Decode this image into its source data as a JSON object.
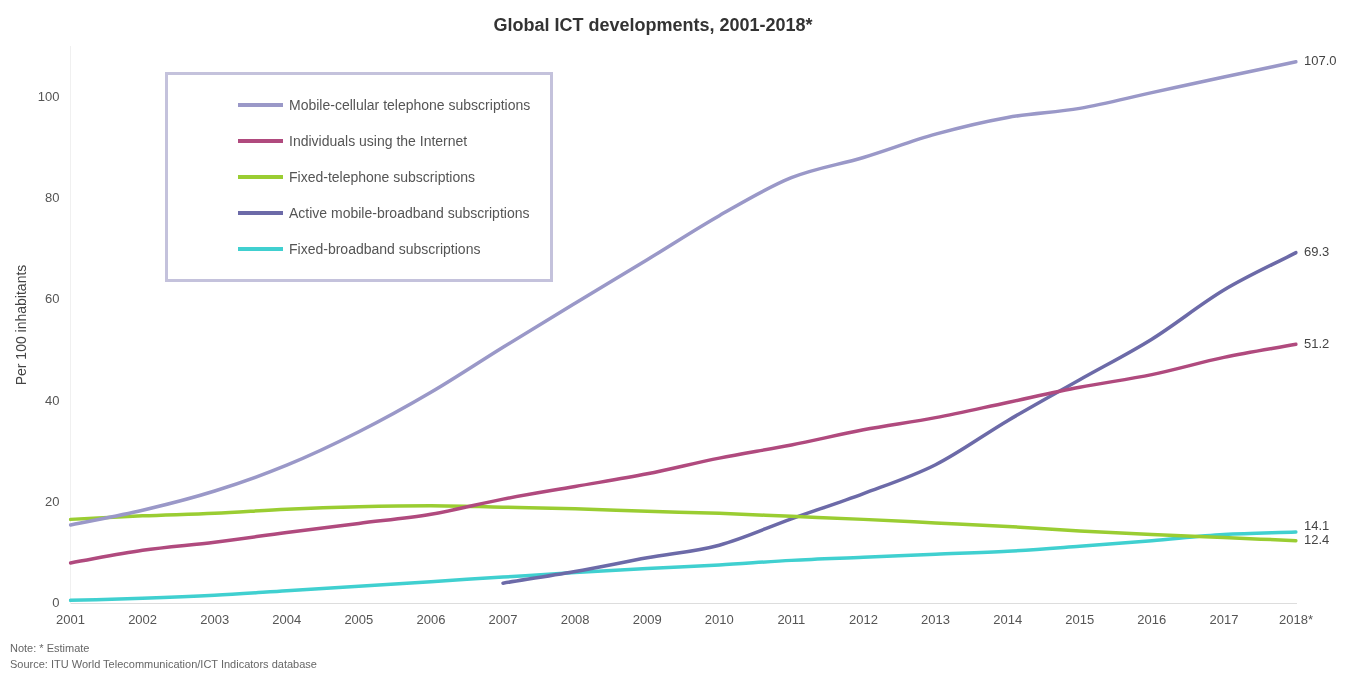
{
  "chart_data": {
    "type": "line",
    "title": "Global ICT developments, 2001-2018*",
    "ylabel": "Per 100 inhabitants",
    "categories": [
      "2001",
      "2002",
      "2003",
      "2004",
      "2005",
      "2006",
      "2007",
      "2008",
      "2009",
      "2010",
      "2011",
      "2012",
      "2013",
      "2014",
      "2015",
      "2016",
      "2017",
      "2018*"
    ],
    "ylim": [
      0,
      110
    ],
    "yticks": [
      0,
      20,
      40,
      60,
      80,
      100
    ],
    "grid": false,
    "legend": "top left",
    "marker": "none",
    "line_style": "solid",
    "series": [
      {
        "name": "Mobile-cellular telephone subscriptions",
        "color": "#9a98c8",
        "values": [
          15.5,
          18.4,
          22.2,
          27.3,
          33.9,
          41.7,
          50.6,
          59.3,
          67.9,
          76.6,
          84.1,
          88.1,
          92.7,
          96.0,
          97.8,
          100.9,
          104.0,
          107.0
        ],
        "value_labels": [
          null,
          null,
          null,
          null,
          null,
          null,
          null,
          null,
          null,
          null,
          null,
          null,
          null,
          null,
          null,
          null,
          null,
          "107.0"
        ]
      },
      {
        "name": "Individuals using the Internet",
        "color": "#b04a7e",
        "values": [
          8.0,
          10.5,
          12.1,
          14.0,
          15.8,
          17.6,
          20.6,
          23.1,
          25.6,
          28.7,
          31.3,
          34.3,
          36.7,
          39.7,
          42.7,
          45.2,
          48.6,
          51.2
        ],
        "value_labels": [
          null,
          null,
          null,
          null,
          null,
          null,
          null,
          null,
          null,
          null,
          null,
          null,
          null,
          null,
          null,
          null,
          null,
          "51.2"
        ]
      },
      {
        "name": "Fixed-telephone subscriptions",
        "color": "#9acd32",
        "values": [
          16.6,
          17.3,
          17.8,
          18.6,
          19.1,
          19.3,
          19.0,
          18.7,
          18.2,
          17.8,
          17.2,
          16.6,
          15.9,
          15.2,
          14.3,
          13.6,
          13.0,
          12.4
        ],
        "value_labels": [
          null,
          null,
          null,
          null,
          null,
          null,
          null,
          null,
          null,
          null,
          null,
          null,
          null,
          null,
          null,
          null,
          null,
          "12.4"
        ]
      },
      {
        "name": "Active mobile-broadband subscriptions",
        "color": "#6c6aa8",
        "values": [
          null,
          null,
          null,
          null,
          null,
          null,
          4.0,
          6.3,
          9.0,
          11.5,
          16.7,
          21.7,
          27.4,
          36.1,
          44.2,
          52.2,
          61.9,
          69.3
        ],
        "value_labels": [
          null,
          null,
          null,
          null,
          null,
          null,
          null,
          null,
          null,
          null,
          null,
          null,
          null,
          null,
          null,
          null,
          null,
          "69.3"
        ]
      },
      {
        "name": "Fixed-broadband subscriptions",
        "color": "#40d0d0",
        "values": [
          0.6,
          1.0,
          1.6,
          2.5,
          3.4,
          4.3,
          5.2,
          6.1,
          6.9,
          7.6,
          8.5,
          9.1,
          9.7,
          10.3,
          11.3,
          12.4,
          13.6,
          14.1
        ],
        "value_labels": [
          null,
          null,
          null,
          null,
          null,
          null,
          null,
          null,
          null,
          null,
          null,
          null,
          null,
          null,
          null,
          null,
          null,
          "14.1"
        ]
      }
    ],
    "annotations": [
      "Note: * Estimate",
      "Source: ITU World Telecommunication/ICT Indicators database"
    ]
  }
}
